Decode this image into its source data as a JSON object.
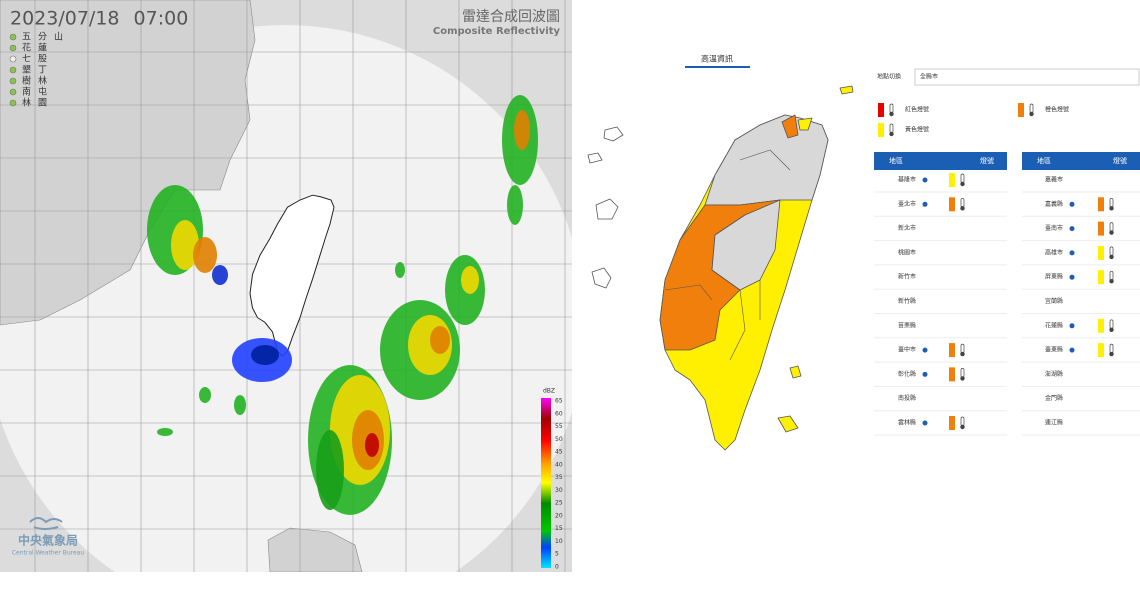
{
  "radar": {
    "timestamp": "2023/07/18 07:00",
    "title": "雷達合成回波圖",
    "subtitle": "Composite Reflectivity",
    "stations": [
      "五分山",
      "花蓮",
      "七股",
      "墾丁",
      "樹林",
      "南屯",
      "林園"
    ],
    "colorbar_unit": "dBZ",
    "colorbar_ticks": [
      65,
      60,
      55,
      50,
      45,
      40,
      35,
      30,
      25,
      20,
      15,
      10,
      5,
      0
    ],
    "agency": "中央氣象局",
    "agency_en": "Central Weather Bureau"
  },
  "heat": {
    "title": "高溫資訊",
    "switch_label": "地點切換",
    "switch_value": "全縣市",
    "legend": {
      "red": "紅色燈號",
      "orange": "橙色燈號",
      "yellow": "黃色燈號"
    },
    "table_header": [
      "地區",
      "燈號"
    ],
    "left_rows": [
      {
        "name": "基隆市",
        "level": "yellow"
      },
      {
        "name": "臺北市",
        "level": "orange"
      },
      {
        "name": "新北市"
      },
      {
        "name": "桃園市"
      },
      {
        "name": "新竹市"
      },
      {
        "name": "新竹縣"
      },
      {
        "name": "苗栗縣"
      },
      {
        "name": "臺中市",
        "level": "orange"
      },
      {
        "name": "彰化縣",
        "level": "orange"
      },
      {
        "name": "南投縣"
      },
      {
        "name": "雲林縣",
        "level": "orange"
      }
    ],
    "right_rows": [
      {
        "name": "嘉義市"
      },
      {
        "name": "嘉義縣",
        "level": "orange"
      },
      {
        "name": "臺南市",
        "level": "orange"
      },
      {
        "name": "高雄市",
        "level": "yellow"
      },
      {
        "name": "屏東縣",
        "level": "yellow"
      },
      {
        "name": "宜蘭縣"
      },
      {
        "name": "花蓮縣",
        "level": "yellow"
      },
      {
        "name": "臺東縣",
        "level": "yellow"
      },
      {
        "name": "澎湖縣"
      },
      {
        "name": "金門縣"
      },
      {
        "name": "連江縣"
      }
    ]
  }
}
